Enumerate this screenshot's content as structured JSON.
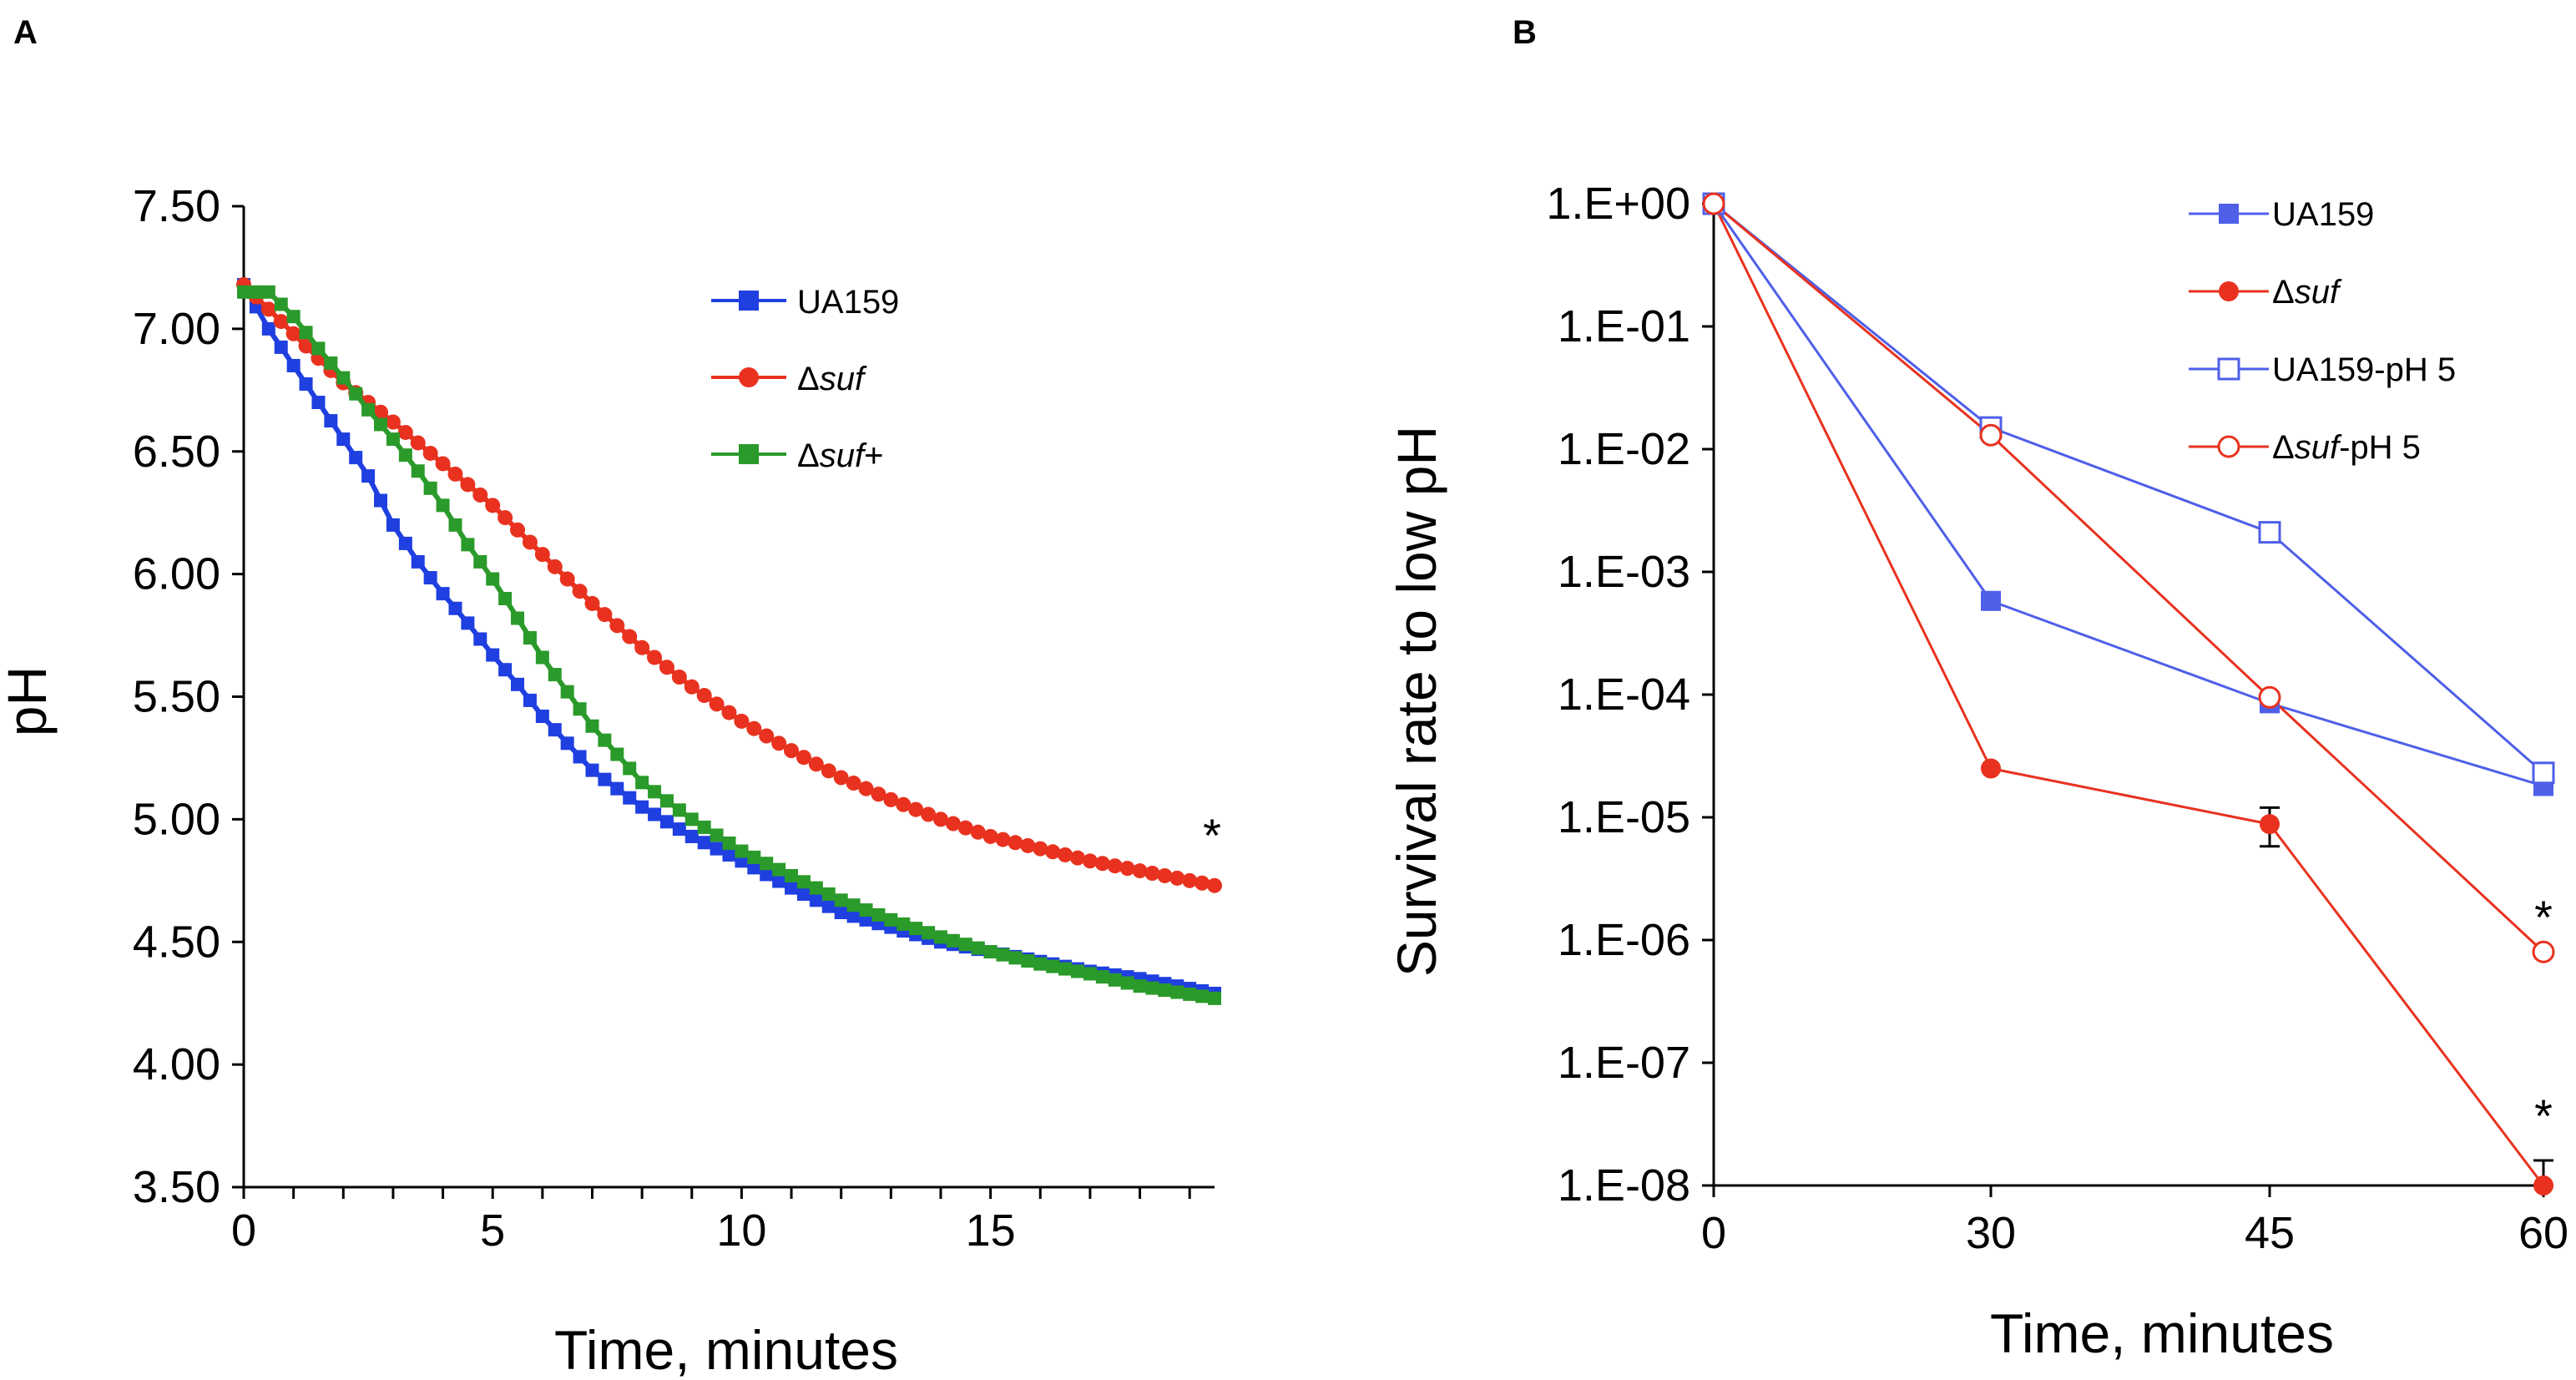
{
  "chart_data": [
    {
      "panel": "A",
      "type": "line",
      "xlabel": "Time, minutes",
      "ylabel": "pH",
      "xlim": [
        0,
        19.5
      ],
      "ylim": [
        3.5,
        7.5
      ],
      "xticks": [
        0,
        5,
        10,
        15
      ],
      "xtick_labels": [
        "0",
        "5",
        "10",
        "15"
      ],
      "yticks": [
        3.5,
        4.0,
        4.5,
        5.0,
        5.5,
        6.0,
        6.5,
        7.0,
        7.5
      ],
      "ytick_labels": [
        "3.50",
        "4.00",
        "4.50",
        "5.00",
        "5.50",
        "6.00",
        "6.50",
        "7.00",
        "7.50"
      ],
      "grid": false,
      "legend_position": "top-right",
      "annotation": "*",
      "series": [
        {
          "name": "UA159",
          "color": "#1f3fe0",
          "marker": "square",
          "x": [
            0,
            0.5,
            1,
            1.5,
            2,
            2.5,
            3,
            3.5,
            4,
            4.5,
            5,
            5.5,
            6,
            7,
            8,
            9,
            10,
            11,
            12,
            13,
            14,
            15,
            16,
            17,
            18,
            19.5
          ],
          "y": [
            7.18,
            7.0,
            6.85,
            6.7,
            6.55,
            6.4,
            6.2,
            6.05,
            5.92,
            5.8,
            5.67,
            5.55,
            5.42,
            5.2,
            5.05,
            4.93,
            4.83,
            4.72,
            4.62,
            4.56,
            4.5,
            4.46,
            4.42,
            4.38,
            4.35,
            4.29
          ]
        },
        {
          "name": "Δsuf",
          "name_prefix": "Δ",
          "name_italic": "suf",
          "name_suffix": "",
          "color": "#e8321f",
          "marker": "circle",
          "x": [
            0,
            0.5,
            1,
            1.5,
            2,
            3,
            4,
            5,
            6,
            7,
            8,
            9,
            10,
            11,
            12,
            13,
            14,
            15,
            16,
            17,
            18,
            19.5
          ],
          "y": [
            7.18,
            7.08,
            6.98,
            6.88,
            6.78,
            6.62,
            6.45,
            6.28,
            6.08,
            5.88,
            5.7,
            5.54,
            5.4,
            5.28,
            5.17,
            5.08,
            5.0,
            4.93,
            4.88,
            4.83,
            4.79,
            4.73
          ]
        },
        {
          "name": "Δsuf+",
          "name_prefix": "Δ",
          "name_italic": "suf",
          "name_suffix": "+",
          "color": "#2a9a2a",
          "marker": "square",
          "x": [
            0,
            0.5,
            1,
            1.5,
            2,
            2.5,
            3,
            3.5,
            4,
            4.5,
            5,
            5.5,
            6,
            7,
            8,
            9,
            10,
            11,
            12,
            13,
            14,
            15,
            16,
            17,
            18,
            19.5
          ],
          "y": [
            7.15,
            7.15,
            7.05,
            6.92,
            6.8,
            6.67,
            6.55,
            6.42,
            6.28,
            6.12,
            5.98,
            5.82,
            5.66,
            5.38,
            5.15,
            5.0,
            4.87,
            4.77,
            4.67,
            4.59,
            4.52,
            4.46,
            4.41,
            4.37,
            4.32,
            4.27
          ]
        }
      ]
    },
    {
      "panel": "B",
      "type": "line",
      "xlabel": "Time, minutes",
      "ylabel": "Survival rate to low pH",
      "yscale": "log",
      "xticks": [
        0,
        30,
        45,
        60
      ],
      "xtick_labels": [
        "0",
        "30",
        "45",
        "60"
      ],
      "ytick_labels": [
        "1.E-08",
        "1.E-07",
        "1.E-06",
        "1.E-05",
        "1.E-04",
        "1.E-03",
        "1.E-02",
        "1.E-01",
        "1.E+00"
      ],
      "ylim_log10": [
        -8,
        0
      ],
      "grid": false,
      "legend_position": "top-right",
      "annotations": [
        "*",
        "*"
      ],
      "series": [
        {
          "name": "UA159",
          "color": "#4e5fe8",
          "marker": "filled-square",
          "x": [
            0,
            30,
            45,
            60
          ],
          "y": [
            1.0,
            0.00058,
            8.5e-05,
            1.8e-05
          ]
        },
        {
          "name": "Δsuf",
          "name_prefix": "Δ",
          "name_italic": "suf",
          "name_suffix": "",
          "color": "#e8321f",
          "marker": "filled-circle",
          "x": [
            0,
            30,
            45,
            60
          ],
          "y": [
            1.0,
            2.5e-05,
            8.8e-06,
            1e-08
          ],
          "error_upper": [
            0,
            0,
            1.2e-05,
            1.6e-08
          ],
          "error_lower": [
            0,
            0,
            5.8e-06,
            1e-08
          ]
        },
        {
          "name": "UA159-pH 5",
          "color": "#4e5fe8",
          "marker": "open-square",
          "x": [
            0,
            30,
            45,
            60
          ],
          "y": [
            1.0,
            0.015,
            0.0021,
            2.3e-05
          ]
        },
        {
          "name": "Δsuf-pH 5",
          "name_prefix": "Δ",
          "name_italic": "suf",
          "name_suffix": "-pH 5",
          "color": "#e8321f",
          "marker": "open-circle",
          "x": [
            0,
            30,
            45,
            60
          ],
          "y": [
            1.0,
            0.013,
            9.5e-05,
            8e-07
          ]
        }
      ]
    }
  ]
}
